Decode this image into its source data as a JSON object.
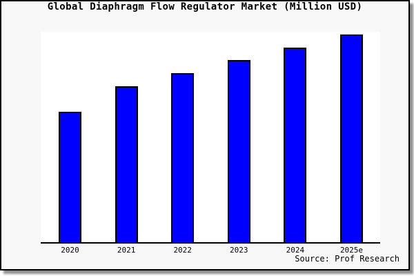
{
  "header": {
    "title": "Global Diaphragm Flow Regulator Market (Million USD)"
  },
  "footer": {
    "source_note": "Source: Prof Research"
  },
  "colors": {
    "bar_fill": "#0000ff",
    "bar_border": "#000000",
    "axis": "#000000",
    "card_background": "#f8f8f8",
    "plot_background": "#ffffff",
    "card_border": "#000000",
    "shadow": "#909090"
  },
  "chart_data": {
    "type": "bar",
    "title": "Global Diaphragm Flow Regulator Market (Million USD)",
    "categories": [
      "2020",
      "2021",
      "2022",
      "2023",
      "2024",
      "2025e"
    ],
    "values": [
      62.8,
      75.1,
      81.4,
      87.7,
      93.7,
      100.0
    ],
    "unit": "relative height, % of 2025e bar (chart shows no numeric y-axis labels)",
    "xlabel": "",
    "ylabel": "",
    "ylim": [
      0,
      101.3
    ],
    "grid": false,
    "legend": false,
    "y_axis_ticks_visible": false,
    "annotations": [
      "Source: Prof Research"
    ]
  }
}
